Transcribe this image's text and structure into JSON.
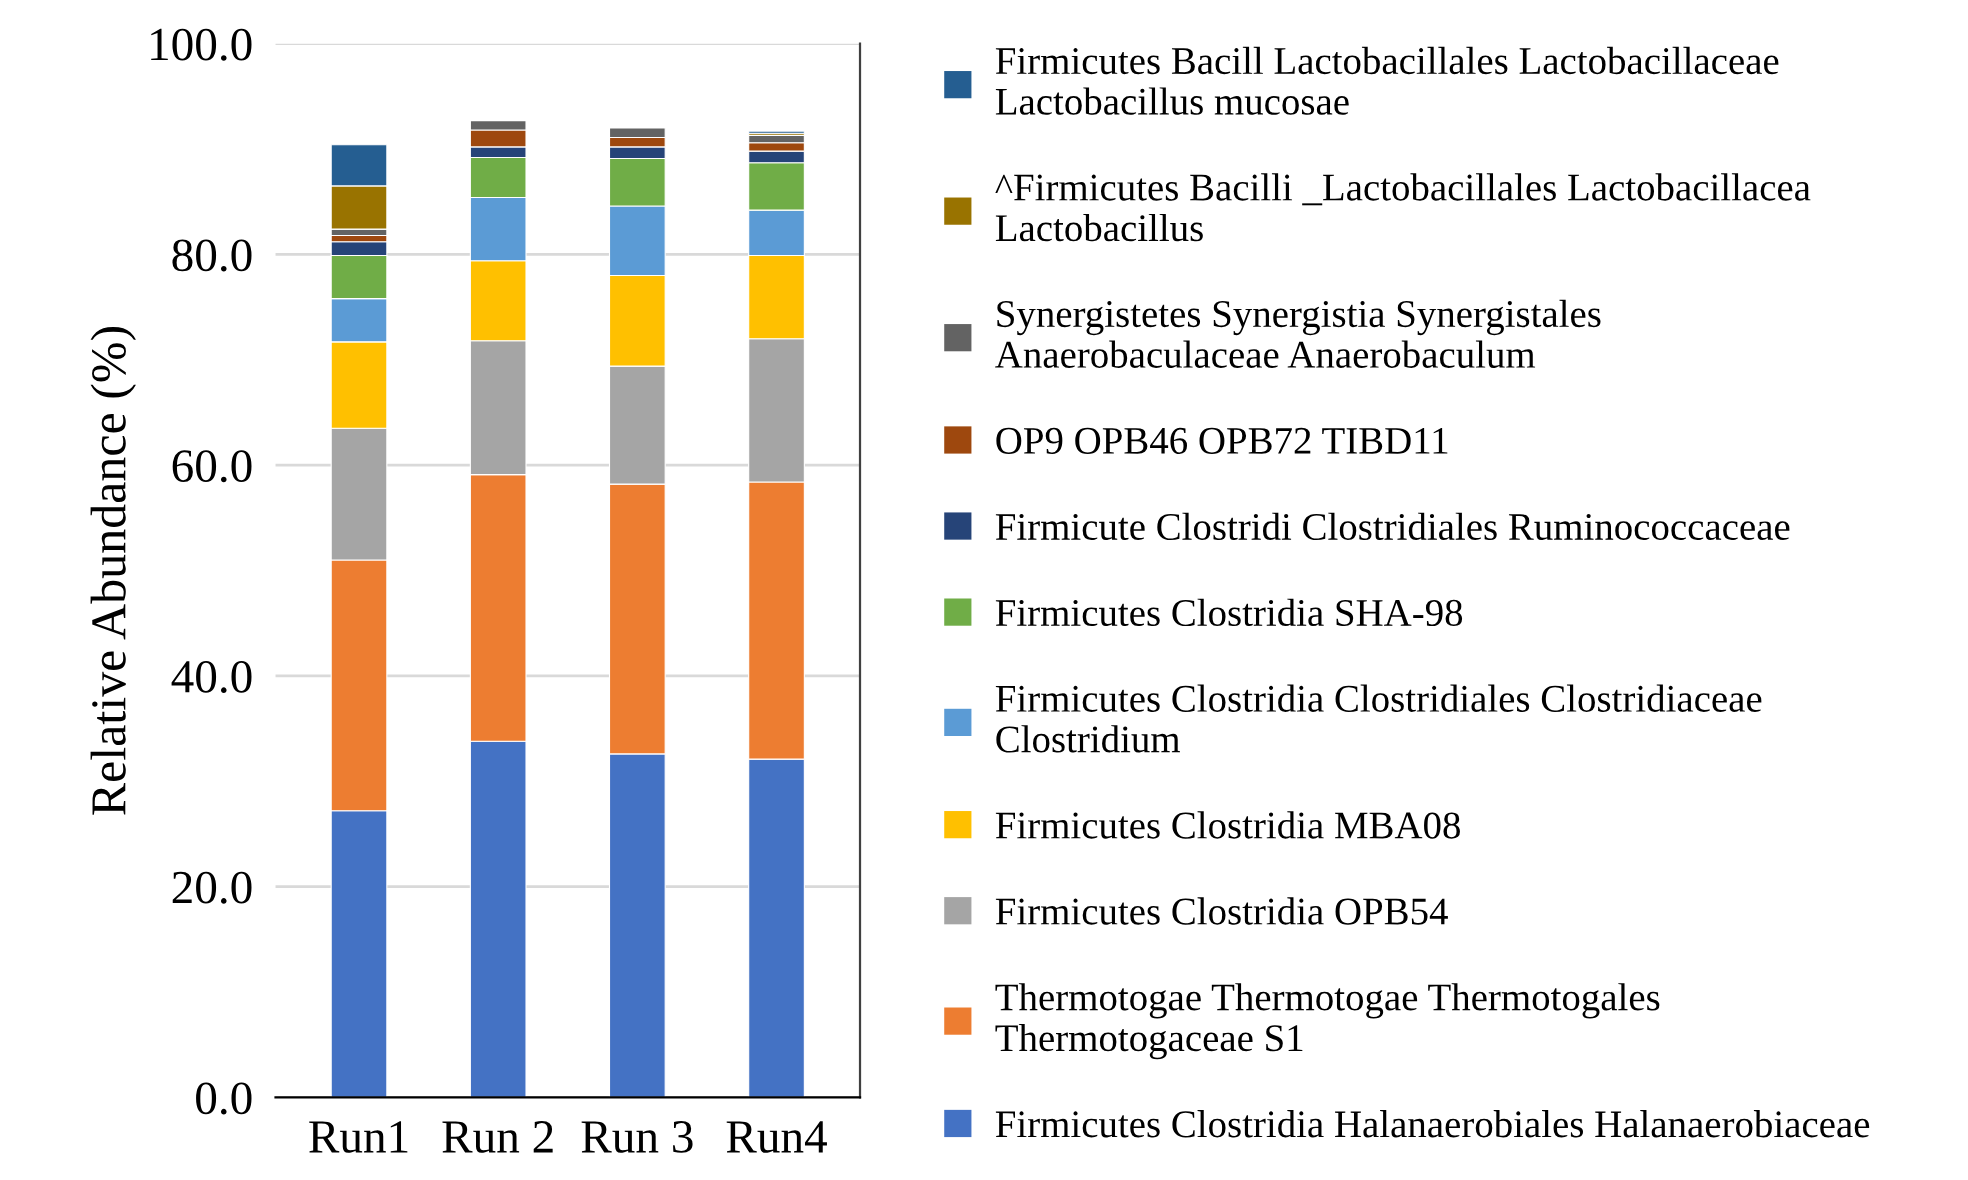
{
  "chart_data": {
    "type": "bar",
    "stacked": true,
    "ylabel": "Relative Abundance (%)",
    "categories": [
      "Run1",
      "Run 2",
      "Run 3",
      "Run4"
    ],
    "series": [
      {
        "name": "Firmicutes Clostridia Halanaerobiales Halanaerobiaceae",
        "color": "#4472c4",
        "values": [
          27.2,
          33.8,
          32.6,
          32.1
        ]
      },
      {
        "name": "Thermotogae Thermotogae Thermotogales\nThermotogaceae S1",
        "color": "#ed7d31",
        "values": [
          23.8,
          25.3,
          25.6,
          26.3
        ]
      },
      {
        "name": "Firmicutes Clostridia OPB54",
        "color": "#a5a5a5",
        "values": [
          12.5,
          12.7,
          11.2,
          13.6
        ]
      },
      {
        "name": "Firmicutes Clostridia MBA08",
        "color": "#ffc000",
        "values": [
          8.2,
          7.6,
          8.6,
          7.9
        ]
      },
      {
        "name": "Firmicutes Clostridia Clostridiales Clostridiaceae\nClostridium",
        "color": "#5b9bd5",
        "values": [
          4.1,
          6.0,
          6.6,
          4.3
        ]
      },
      {
        "name": "Firmicutes Clostridia SHA-98",
        "color": "#70ad47",
        "values": [
          4.1,
          3.8,
          4.5,
          4.5
        ]
      },
      {
        "name": "Firmicute Clostridi Clostridiales Ruminococcaceae",
        "color": "#264478",
        "values": [
          1.3,
          1.0,
          1.1,
          1.1
        ]
      },
      {
        "name": "OP9 OPB46 OPB72 TIBD11",
        "color": "#9e480e",
        "values": [
          0.6,
          1.6,
          0.9,
          0.8
        ]
      },
      {
        "name": "Synergistetes Synergistia Synergistales\nAnaerobaculaceae Anaerobaculum",
        "color": "#636363",
        "values": [
          0.6,
          0.9,
          0.9,
          0.7
        ]
      },
      {
        "name": "^Firmicutes Bacilli _Lactobacillales Lactobacillacea\nLactobacillus",
        "color": "#997300",
        "values": [
          4.1,
          0,
          0,
          0.2
        ]
      },
      {
        "name": "Firmicutes Bacill Lactobacillales Lactobacillaceae\nLactobacillus mucosae",
        "color": "#255e91",
        "values": [
          3.9,
          0,
          0,
          0.2
        ]
      }
    ],
    "ylim": [
      0,
      100
    ],
    "yticks": [
      {
        "value": 0,
        "label": "0.0"
      },
      {
        "value": 20,
        "label": "20.0"
      },
      {
        "value": 40,
        "label": "40.0"
      },
      {
        "value": 60,
        "label": "60.0"
      },
      {
        "value": 80,
        "label": "80.0"
      },
      {
        "value": 100,
        "label": "100.0"
      }
    ],
    "grid": "y",
    "legend": "right"
  }
}
